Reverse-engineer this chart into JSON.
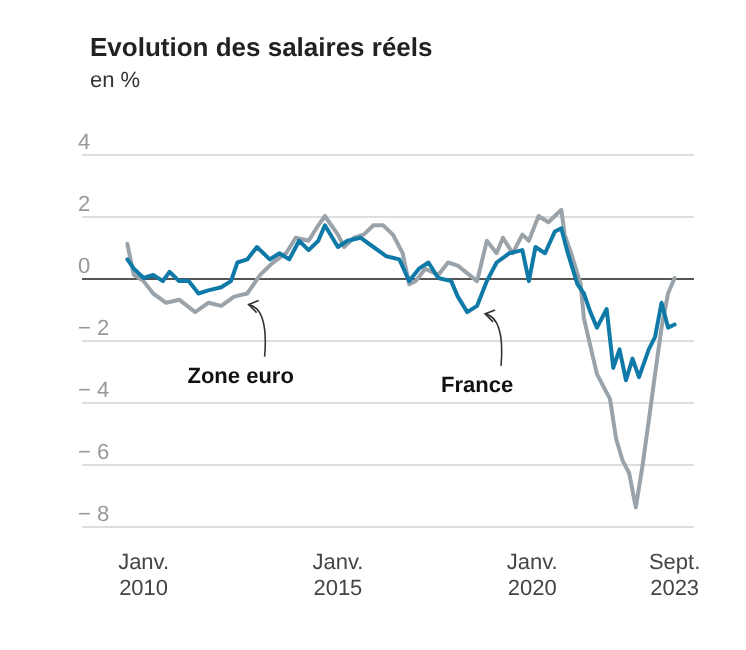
{
  "chart_data": {
    "type": "line",
    "title": "Evolution des salaires réels",
    "subtitle": "en %",
    "series": [
      {
        "color": "#9aa3a9",
        "x": [
          "2009-08",
          "2009-10",
          "2010-01",
          "2010-04",
          "2010-08",
          "2010-12",
          "2011-05",
          "2011-09",
          "2012-01",
          "2012-05",
          "2012-09",
          "2013-01",
          "2013-05",
          "2013-09",
          "2013-12",
          "2014-04",
          "2014-07",
          "2014-09",
          "2015-01",
          "2015-03",
          "2015-06",
          "2015-09",
          "2015-12",
          "2016-03",
          "2016-06",
          "2016-09",
          "2016-11",
          "2017-01",
          "2017-04",
          "2017-08",
          "2017-11",
          "2018-02",
          "2018-08",
          "2018-11",
          "2019-02",
          "2019-04",
          "2019-07",
          "2019-10",
          "2019-12",
          "2020-03",
          "2020-06",
          "2020-10",
          "2020-11",
          "2021-01",
          "2021-04",
          "2021-05",
          "2021-09",
          "2022-01",
          "2022-03",
          "2022-05",
          "2022-07",
          "2022-09",
          "2022-11",
          "2023-01",
          "2023-03",
          "2023-05",
          "2023-07",
          "2023-09"
        ],
        "values": [
          1.1,
          0.1,
          -0.1,
          -0.5,
          -0.8,
          -0.7,
          -1.1,
          -0.8,
          -0.9,
          -0.6,
          -0.5,
          0.1,
          0.5,
          0.8,
          1.3,
          1.2,
          1.7,
          2.0,
          1.4,
          1.0,
          1.3,
          1.4,
          1.7,
          1.7,
          1.4,
          0.8,
          -0.2,
          -0.1,
          0.3,
          0.1,
          0.5,
          0.4,
          -0.1,
          1.2,
          0.8,
          1.3,
          0.8,
          1.4,
          1.2,
          2.0,
          1.8,
          2.2,
          1.4,
          0.8,
          -0.2,
          -1.3,
          -3.1,
          -3.9,
          -5.2,
          -5.9,
          -6.3,
          -7.4,
          -6.1,
          -4.6,
          -3.1,
          -1.6,
          -0.5,
          0
        ]
      },
      {
        "color": "#0f7aa8",
        "x": [
          "2009-08",
          "2009-10",
          "2010-01",
          "2010-04",
          "2010-07",
          "2010-09",
          "2010-12",
          "2011-03",
          "2011-06",
          "2011-09",
          "2012-01",
          "2012-04",
          "2012-06",
          "2012-09",
          "2012-12",
          "2013-04",
          "2013-07",
          "2013-10",
          "2014-01",
          "2014-04",
          "2014-07",
          "2014-09",
          "2015-01",
          "2015-04",
          "2015-08",
          "2015-12",
          "2016-04",
          "2016-08",
          "2016-11",
          "2017-02",
          "2017-05",
          "2017-08",
          "2017-12",
          "2018-02",
          "2018-05",
          "2018-08",
          "2018-11",
          "2019-02",
          "2019-06",
          "2019-10",
          "2019-12",
          "2020-02",
          "2020-05",
          "2020-08",
          "2020-10",
          "2020-12",
          "2021-03",
          "2021-05",
          "2021-07",
          "2021-09",
          "2021-12",
          "2022-02",
          "2022-04",
          "2022-06",
          "2022-08",
          "2022-10",
          "2023-01",
          "2023-03",
          "2023-05",
          "2023-07",
          "2023-09"
        ],
        "values": [
          0.6,
          0.3,
          0,
          0.1,
          -0.1,
          0.2,
          -0.1,
          -0.1,
          -0.5,
          -0.4,
          -0.3,
          -0.1,
          0.5,
          0.6,
          1.0,
          0.6,
          0.8,
          0.6,
          1.2,
          0.9,
          1.2,
          1.7,
          1.0,
          1.2,
          1.3,
          1.0,
          0.7,
          0.6,
          -0.1,
          0.3,
          0.5,
          0,
          -0.1,
          -0.6,
          -1.1,
          -0.9,
          -0.1,
          0.5,
          0.8,
          0.9,
          -0.1,
          1.0,
          0.8,
          1.5,
          1.6,
          0.8,
          -0.2,
          -0.5,
          -1.1,
          -1.6,
          -1.0,
          -2.9,
          -2.3,
          -3.3,
          -2.6,
          -3.2,
          -2.3,
          -1.9,
          -0.8,
          -1.6,
          -1.5
        ]
      }
    ],
    "xlim": [
      "2008-06",
      "2024-03"
    ],
    "xticks": [
      {
        "value": "2010-01",
        "label": "Janv.\n2010"
      },
      {
        "value": "2015-01",
        "label": "Janv.\n2015"
      },
      {
        "value": "2020-01",
        "label": "Janv.\n2020"
      },
      {
        "value": "2023-09",
        "label": "Sept.\n2023"
      }
    ],
    "ylim": [
      -8,
      4
    ],
    "yticks": [
      {
        "value": -8,
        "label": "− 8"
      },
      {
        "value": -6,
        "label": "− 6"
      },
      {
        "value": -4,
        "label": "− 4"
      },
      {
        "value": -2,
        "label": "− 2"
      },
      0,
      2,
      4
    ],
    "grid": "y",
    "marker": "none",
    "line_style": "solid",
    "ref_lines": [
      {
        "axis": "y",
        "value": 0,
        "color": "#555555"
      }
    ],
    "annotations": [
      {
        "text": "Zone euro",
        "x": "2012-07",
        "y": -0.6
      },
      {
        "text": "France",
        "x": "2018-08",
        "y": -0.9
      }
    ]
  }
}
